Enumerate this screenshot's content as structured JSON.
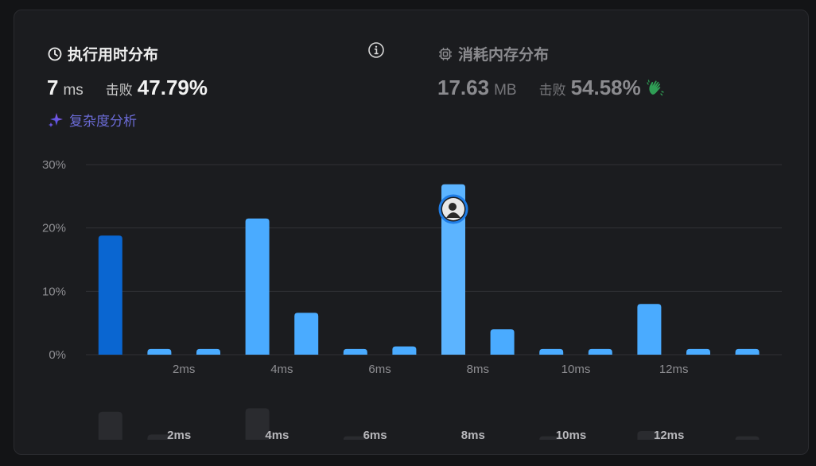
{
  "runtime": {
    "title": "执行用时分布",
    "value": "7",
    "unit": "ms",
    "beat_label": "击败",
    "beat_value": "47.79%",
    "analysis_label": "复杂度分析"
  },
  "memory": {
    "title": "消耗内存分布",
    "value": "17.63",
    "unit": "MB",
    "beat_label": "击败",
    "beat_value": "54.58%"
  },
  "colors": {
    "bar": "#4aabff",
    "bar_selected": "#0a66d1",
    "bar_user": "#5cb4ff",
    "grid": "#303136",
    "axis_text": "#8e8e92",
    "mini_bar": "#2a2b2f",
    "accent_purple": "#6b6bd6",
    "wave_green": "#2f9e55"
  },
  "chart_data": {
    "type": "bar",
    "title": "",
    "xlabel": "",
    "ylabel": "",
    "ylim": [
      0,
      30
    ],
    "yticks": [
      "0%",
      "10%",
      "20%",
      "30%"
    ],
    "xtick_labels": [
      "2ms",
      "4ms",
      "6ms",
      "8ms",
      "10ms",
      "12ms"
    ],
    "series": [
      {
        "x": [
          0.5,
          1.5,
          2.5,
          3.5,
          4.5,
          5.5,
          6.5,
          7.5,
          8.5,
          9.5,
          10.5,
          11.5,
          12.5,
          13.5,
          14.5
        ],
        "values": [
          18.8,
          0.9,
          0.9,
          21.5,
          6.6,
          0.9,
          1.3,
          26.9,
          4.0,
          0.9,
          0.9,
          8.0,
          0.9,
          0.9,
          0
        ],
        "highlighted_index": 0,
        "user_index": 7
      }
    ],
    "overview": {
      "values": [
        16,
        3,
        0,
        18,
        0,
        2,
        0,
        0,
        0,
        2,
        0,
        5,
        0,
        2
      ],
      "xtick_labels": [
        "2ms",
        "4ms",
        "6ms",
        "8ms",
        "10ms",
        "12ms"
      ]
    }
  }
}
